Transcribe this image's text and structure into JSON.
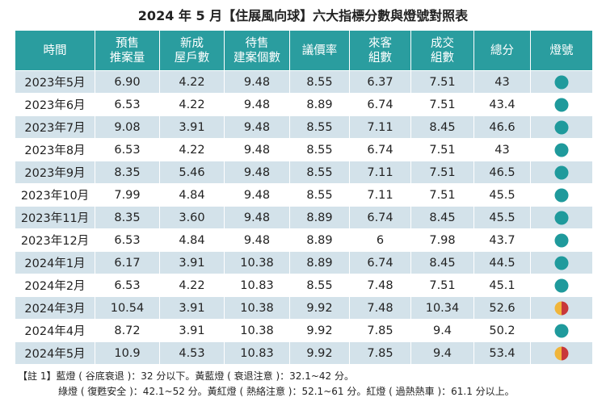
{
  "title": "2024 年 5 月【住展風向球】六大指標分數與燈號對照表",
  "table": {
    "header": [
      [
        "時間"
      ],
      [
        "預售",
        "推案量"
      ],
      [
        "新成",
        "屋戶數"
      ],
      [
        "待售",
        "建案個數"
      ],
      [
        "議價率"
      ],
      [
        "來客",
        "組數"
      ],
      [
        "成交",
        "組數"
      ],
      [
        "總分"
      ],
      [
        "燈號"
      ]
    ],
    "rows": [
      [
        "2023年5月",
        "6.90",
        "4.22",
        "9.48",
        "8.55",
        "6.37",
        "7.51",
        "43"
      ],
      [
        "2023年6月",
        "6.53",
        "4.22",
        "9.48",
        "8.89",
        "6.74",
        "7.51",
        "43.4"
      ],
      [
        "2023年7月",
        "9.08",
        "3.91",
        "9.48",
        "8.55",
        "7.11",
        "8.45",
        "46.6"
      ],
      [
        "2023年8月",
        "6.53",
        "4.22",
        "9.48",
        "8.55",
        "6.74",
        "7.51",
        "43"
      ],
      [
        "2023年9月",
        "8.35",
        "5.46",
        "9.48",
        "8.55",
        "7.11",
        "7.51",
        "46.5"
      ],
      [
        "2023年10月",
        "7.99",
        "4.84",
        "9.48",
        "8.55",
        "7.11",
        "7.51",
        "45.5"
      ],
      [
        "2023年11月",
        "8.35",
        "3.60",
        "9.48",
        "8.89",
        "6.74",
        "8.45",
        "45.5"
      ],
      [
        "2023年12月",
        "6.53",
        "4.84",
        "9.48",
        "8.89",
        "6",
        "7.98",
        "43.7"
      ],
      [
        "2024年1月",
        "6.17",
        "3.91",
        "10.38",
        "8.89",
        "6.74",
        "8.45",
        "44.5"
      ],
      [
        "2024年2月",
        "6.53",
        "4.22",
        "10.83",
        "8.55",
        "7.48",
        "7.51",
        "45.1"
      ],
      [
        "2024年3月",
        "10.54",
        "3.91",
        "10.38",
        "9.92",
        "7.48",
        "10.34",
        "52.6"
      ],
      [
        "2024年4月",
        "8.72",
        "3.91",
        "10.38",
        "9.92",
        "7.85",
        "9.4",
        "50.2"
      ],
      [
        "2024年5月",
        "10.9",
        "4.53",
        "10.83",
        "9.92",
        "7.85",
        "9.4",
        "53.4"
      ]
    ],
    "lights": [
      [
        "#1f9a9c"
      ],
      [
        "#1f9a9c"
      ],
      [
        "#1f9a9c"
      ],
      [
        "#1f9a9c"
      ],
      [
        "#1f9a9c"
      ],
      [
        "#1f9a9c"
      ],
      [
        "#1f9a9c"
      ],
      [
        "#1f9a9c"
      ],
      [
        "#1f9a9c"
      ],
      [
        "#1f9a9c"
      ],
      [
        "#f0b53a",
        "#c8383a"
      ],
      [
        "#1f9a9c"
      ],
      [
        "#f0b53a",
        "#c8383a"
      ]
    ]
  },
  "notes": [
    "【註 1】藍燈 ( 谷底衰退 )：32 分以下。黃藍燈 ( 衰退注意 )：32.1~42 分。",
    "綠燈 ( 復甦安全 )：42.1~52 分。黃紅燈 ( 熱絡注意 )：52.1~61 分。紅燈 ( 過熱熱車 )：61.1 分以上。"
  ]
}
